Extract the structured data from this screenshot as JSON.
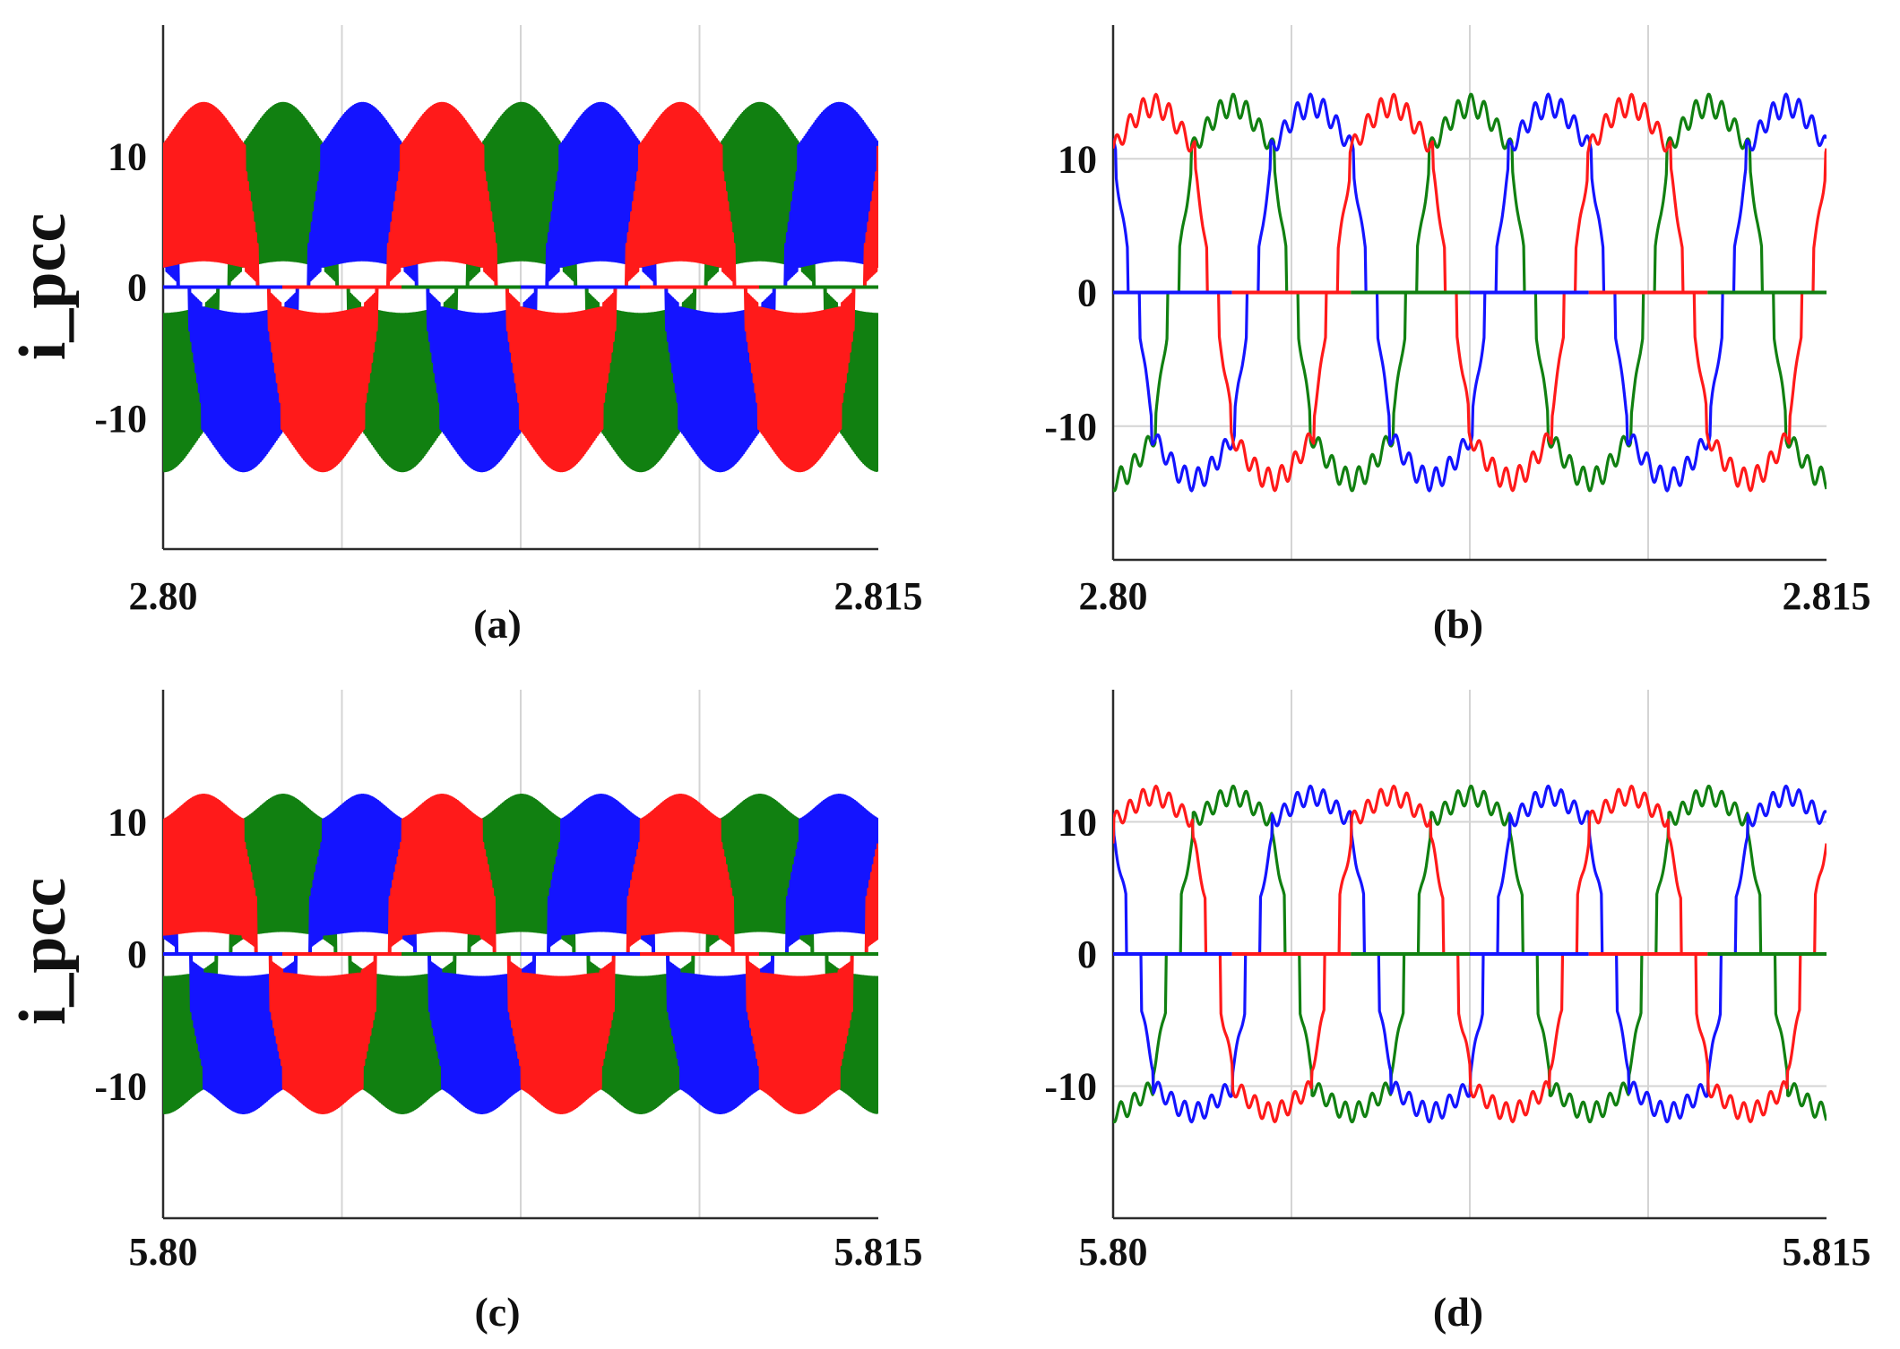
{
  "figure": {
    "panel_labels": [
      "(a)",
      "(b)",
      "(c)",
      "(d)"
    ]
  },
  "colors": {
    "phase_a": "#ff1a1a",
    "phase_b": "#118011",
    "phase_c": "#1414ff",
    "grid": "#d4d4d4",
    "axis": "#2b2b2b"
  },
  "chart_data": [
    {
      "type": "line",
      "panel": "(a)",
      "title": "",
      "xlabel": "",
      "ylabel": "i_pcc",
      "xlim": [
        2.8,
        2.815
      ],
      "ylim": [
        -20,
        20
      ],
      "xtick_labels": [
        "2.80",
        "2.815"
      ],
      "yticks": [
        10,
        0,
        -10
      ],
      "ytick_labels": [
        "10",
        "0",
        "-10"
      ],
      "grid": true,
      "legend": "none",
      "style": "dense-filled",
      "cycle": 0.005,
      "series_colors": [
        "#ff1a1a",
        "#118011",
        "#1414ff"
      ],
      "pos_envelope_peak": [
        9,
        14,
        14,
        14,
        12
      ],
      "neg_envelope_peak": [
        -9,
        -14,
        -14,
        -14,
        -12
      ],
      "approx_peak_abs": 14
    },
    {
      "type": "line",
      "panel": "(b)",
      "title": "",
      "xlabel": "",
      "ylabel": "",
      "xlim": [
        2.8,
        2.815
      ],
      "ylim": [
        -20,
        20
      ],
      "xtick_labels": [
        "2.80",
        "2.815"
      ],
      "yticks": [
        10,
        0,
        -10
      ],
      "ytick_labels": [
        "10",
        "0",
        "-10"
      ],
      "grid": true,
      "legend": "none",
      "style": "line",
      "cycle": 0.005,
      "series_colors": [
        "#ff1a1a",
        "#118011",
        "#1414ff"
      ],
      "approx_peak_abs": 14
    },
    {
      "type": "line",
      "panel": "(c)",
      "title": "",
      "xlabel": "",
      "ylabel": "i_pcc",
      "xlim": [
        5.8,
        5.815
      ],
      "ylim": [
        -20,
        20
      ],
      "xtick_labels": [
        "5.80",
        "5.815"
      ],
      "yticks": [
        10,
        0,
        -10
      ],
      "ytick_labels": [
        "10",
        "0",
        "-10"
      ],
      "grid": true,
      "legend": "none",
      "style": "dense-filled",
      "cycle": 0.005,
      "series_colors": [
        "#ff1a1a",
        "#118011",
        "#1414ff"
      ],
      "approx_peak_abs": 12
    },
    {
      "type": "line",
      "panel": "(d)",
      "title": "",
      "xlabel": "",
      "ylabel": "",
      "xlim": [
        5.8,
        5.815
      ],
      "ylim": [
        -20,
        20
      ],
      "xtick_labels": [
        "5.80",
        "5.815"
      ],
      "yticks": [
        10,
        0,
        -10
      ],
      "ytick_labels": [
        "10",
        "0",
        "-10"
      ],
      "grid": true,
      "legend": "none",
      "style": "line",
      "cycle": 0.005,
      "series_colors": [
        "#ff1a1a",
        "#118011",
        "#1414ff"
      ],
      "approx_peak_abs": 12
    }
  ]
}
